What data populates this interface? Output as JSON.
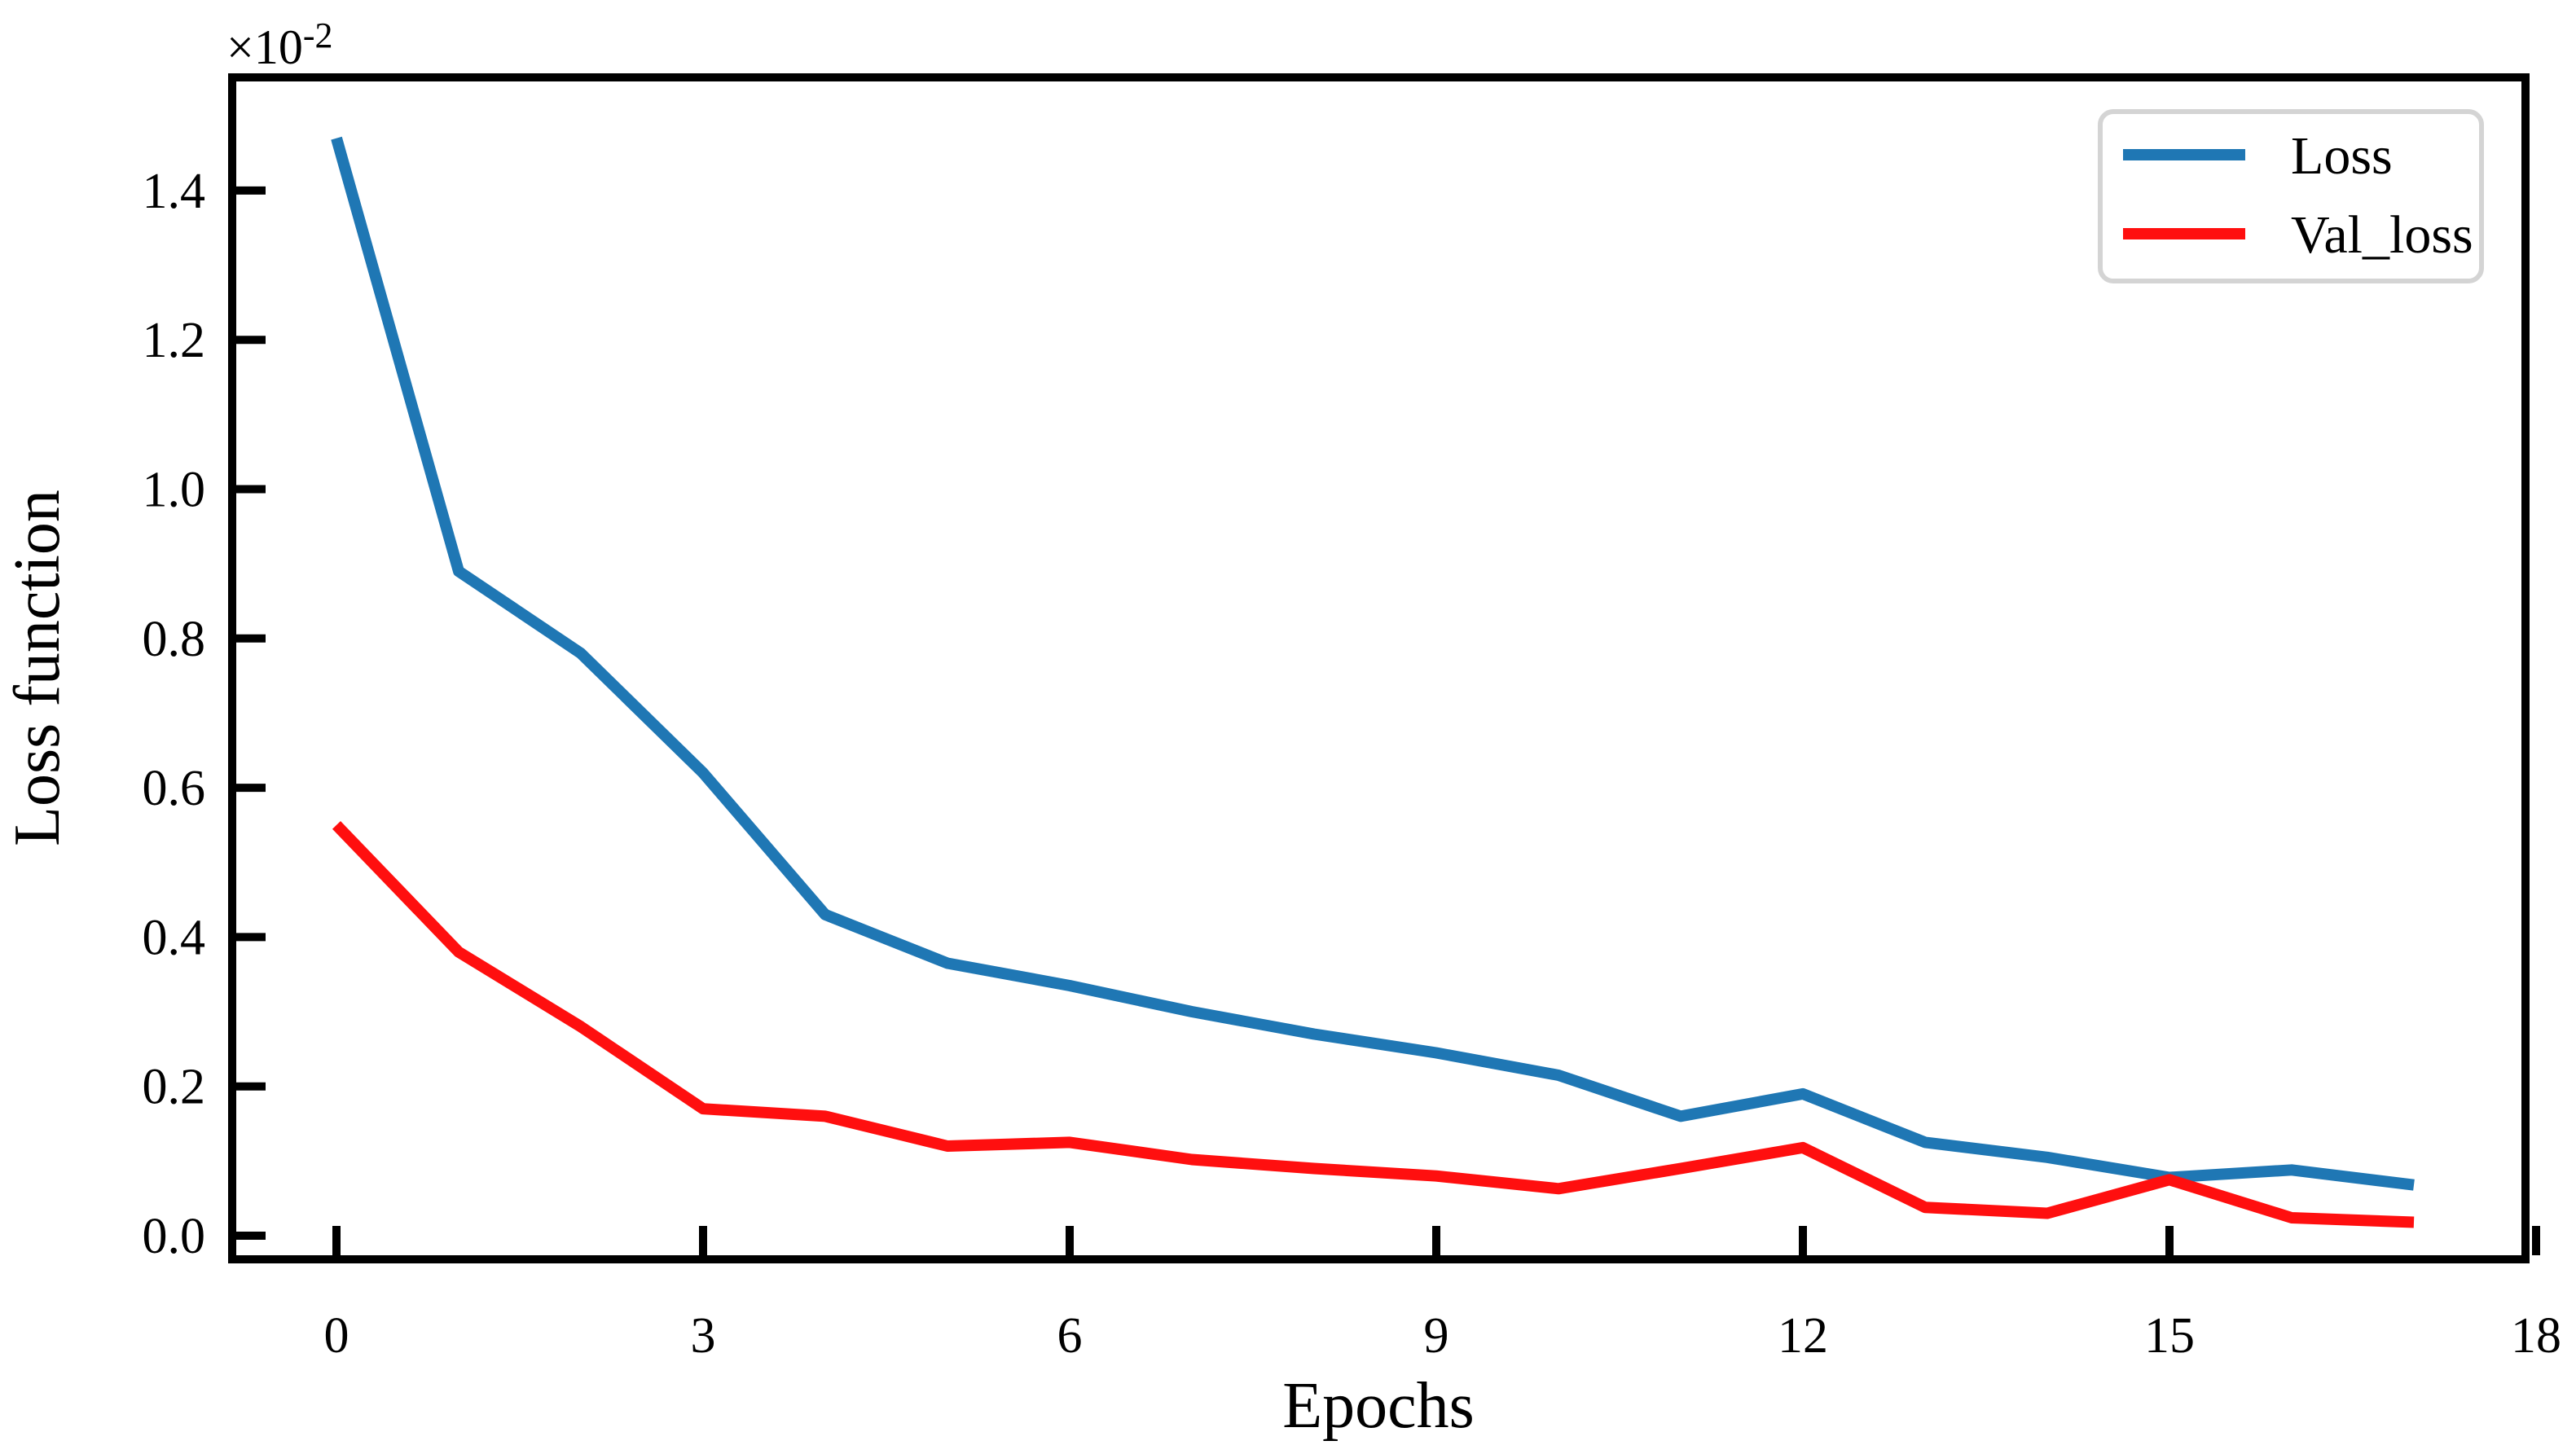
{
  "chart_data": {
    "type": "line",
    "x": [
      0,
      1,
      2,
      3,
      4,
      5,
      6,
      7,
      8,
      9,
      10,
      11,
      12,
      13,
      14,
      15,
      16,
      17
    ],
    "series": [
      {
        "name": "Loss",
        "color": "#1f77b4",
        "values": [
          1.47,
          0.89,
          0.78,
          0.62,
          0.43,
          0.365,
          0.335,
          0.3,
          0.27,
          0.245,
          0.215,
          0.16,
          0.19,
          0.125,
          0.105,
          0.078,
          0.088,
          0.068
        ]
      },
      {
        "name": "Val_loss",
        "color": "#ff0f0f",
        "values": [
          0.55,
          0.38,
          0.28,
          0.17,
          0.16,
          0.12,
          0.125,
          0.102,
          0.09,
          0.08,
          0.063,
          0.09,
          0.118,
          0.038,
          0.03,
          0.075,
          0.024,
          0.018
        ]
      }
    ],
    "title": "",
    "xlabel": "Epochs",
    "ylabel": "Loss function",
    "offset": {
      "base": "×10",
      "exponent": "-2"
    },
    "offset_text": "×10⁻²",
    "x_ticks": [
      "0",
      "3",
      "6",
      "9",
      "12",
      "15",
      "18"
    ],
    "y_ticks": [
      "0.0",
      "0.2",
      "0.4",
      "0.6",
      "0.8",
      "1.0",
      "1.2",
      "1.4"
    ],
    "xlim": [
      -0.85,
      17.95
    ],
    "ylim": [
      -0.032,
      1.551
    ],
    "grid": "off",
    "legend": {
      "position": "upper right",
      "entries": [
        "Loss",
        "Val_loss"
      ]
    },
    "axis_color": "#000000"
  }
}
